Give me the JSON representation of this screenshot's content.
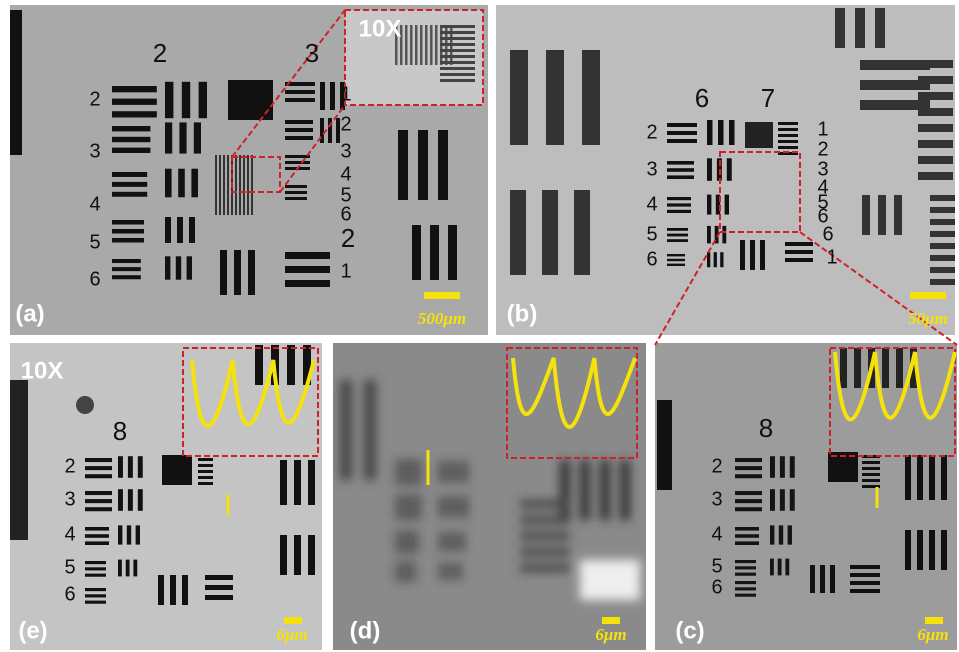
{
  "panels": [
    {
      "label": "(a)",
      "scale_bar": "500μm",
      "magnification": "10X",
      "target_labels": [
        "2",
        "3",
        "2",
        "3",
        "4",
        "5",
        "6",
        "1",
        "2",
        "3",
        "4",
        "5",
        "6",
        "2",
        "1"
      ]
    },
    {
      "label": "(b)",
      "scale_bar": "50μm",
      "target_labels": [
        "6",
        "7",
        "2",
        "3",
        "4",
        "5",
        "6",
        "1",
        "2",
        "3",
        "4",
        "5",
        "6",
        "6",
        "1"
      ]
    },
    {
      "label": "(e)",
      "scale_bar": "6μm",
      "magnification": "10X",
      "target_labels": [
        "8",
        "2",
        "3",
        "4",
        "5",
        "6"
      ]
    },
    {
      "label": "(d)",
      "scale_bar": "6μm"
    },
    {
      "label": "(c)",
      "scale_bar": "6μm",
      "target_labels": [
        "8",
        "2",
        "3",
        "4",
        "5",
        "6"
      ]
    }
  ]
}
